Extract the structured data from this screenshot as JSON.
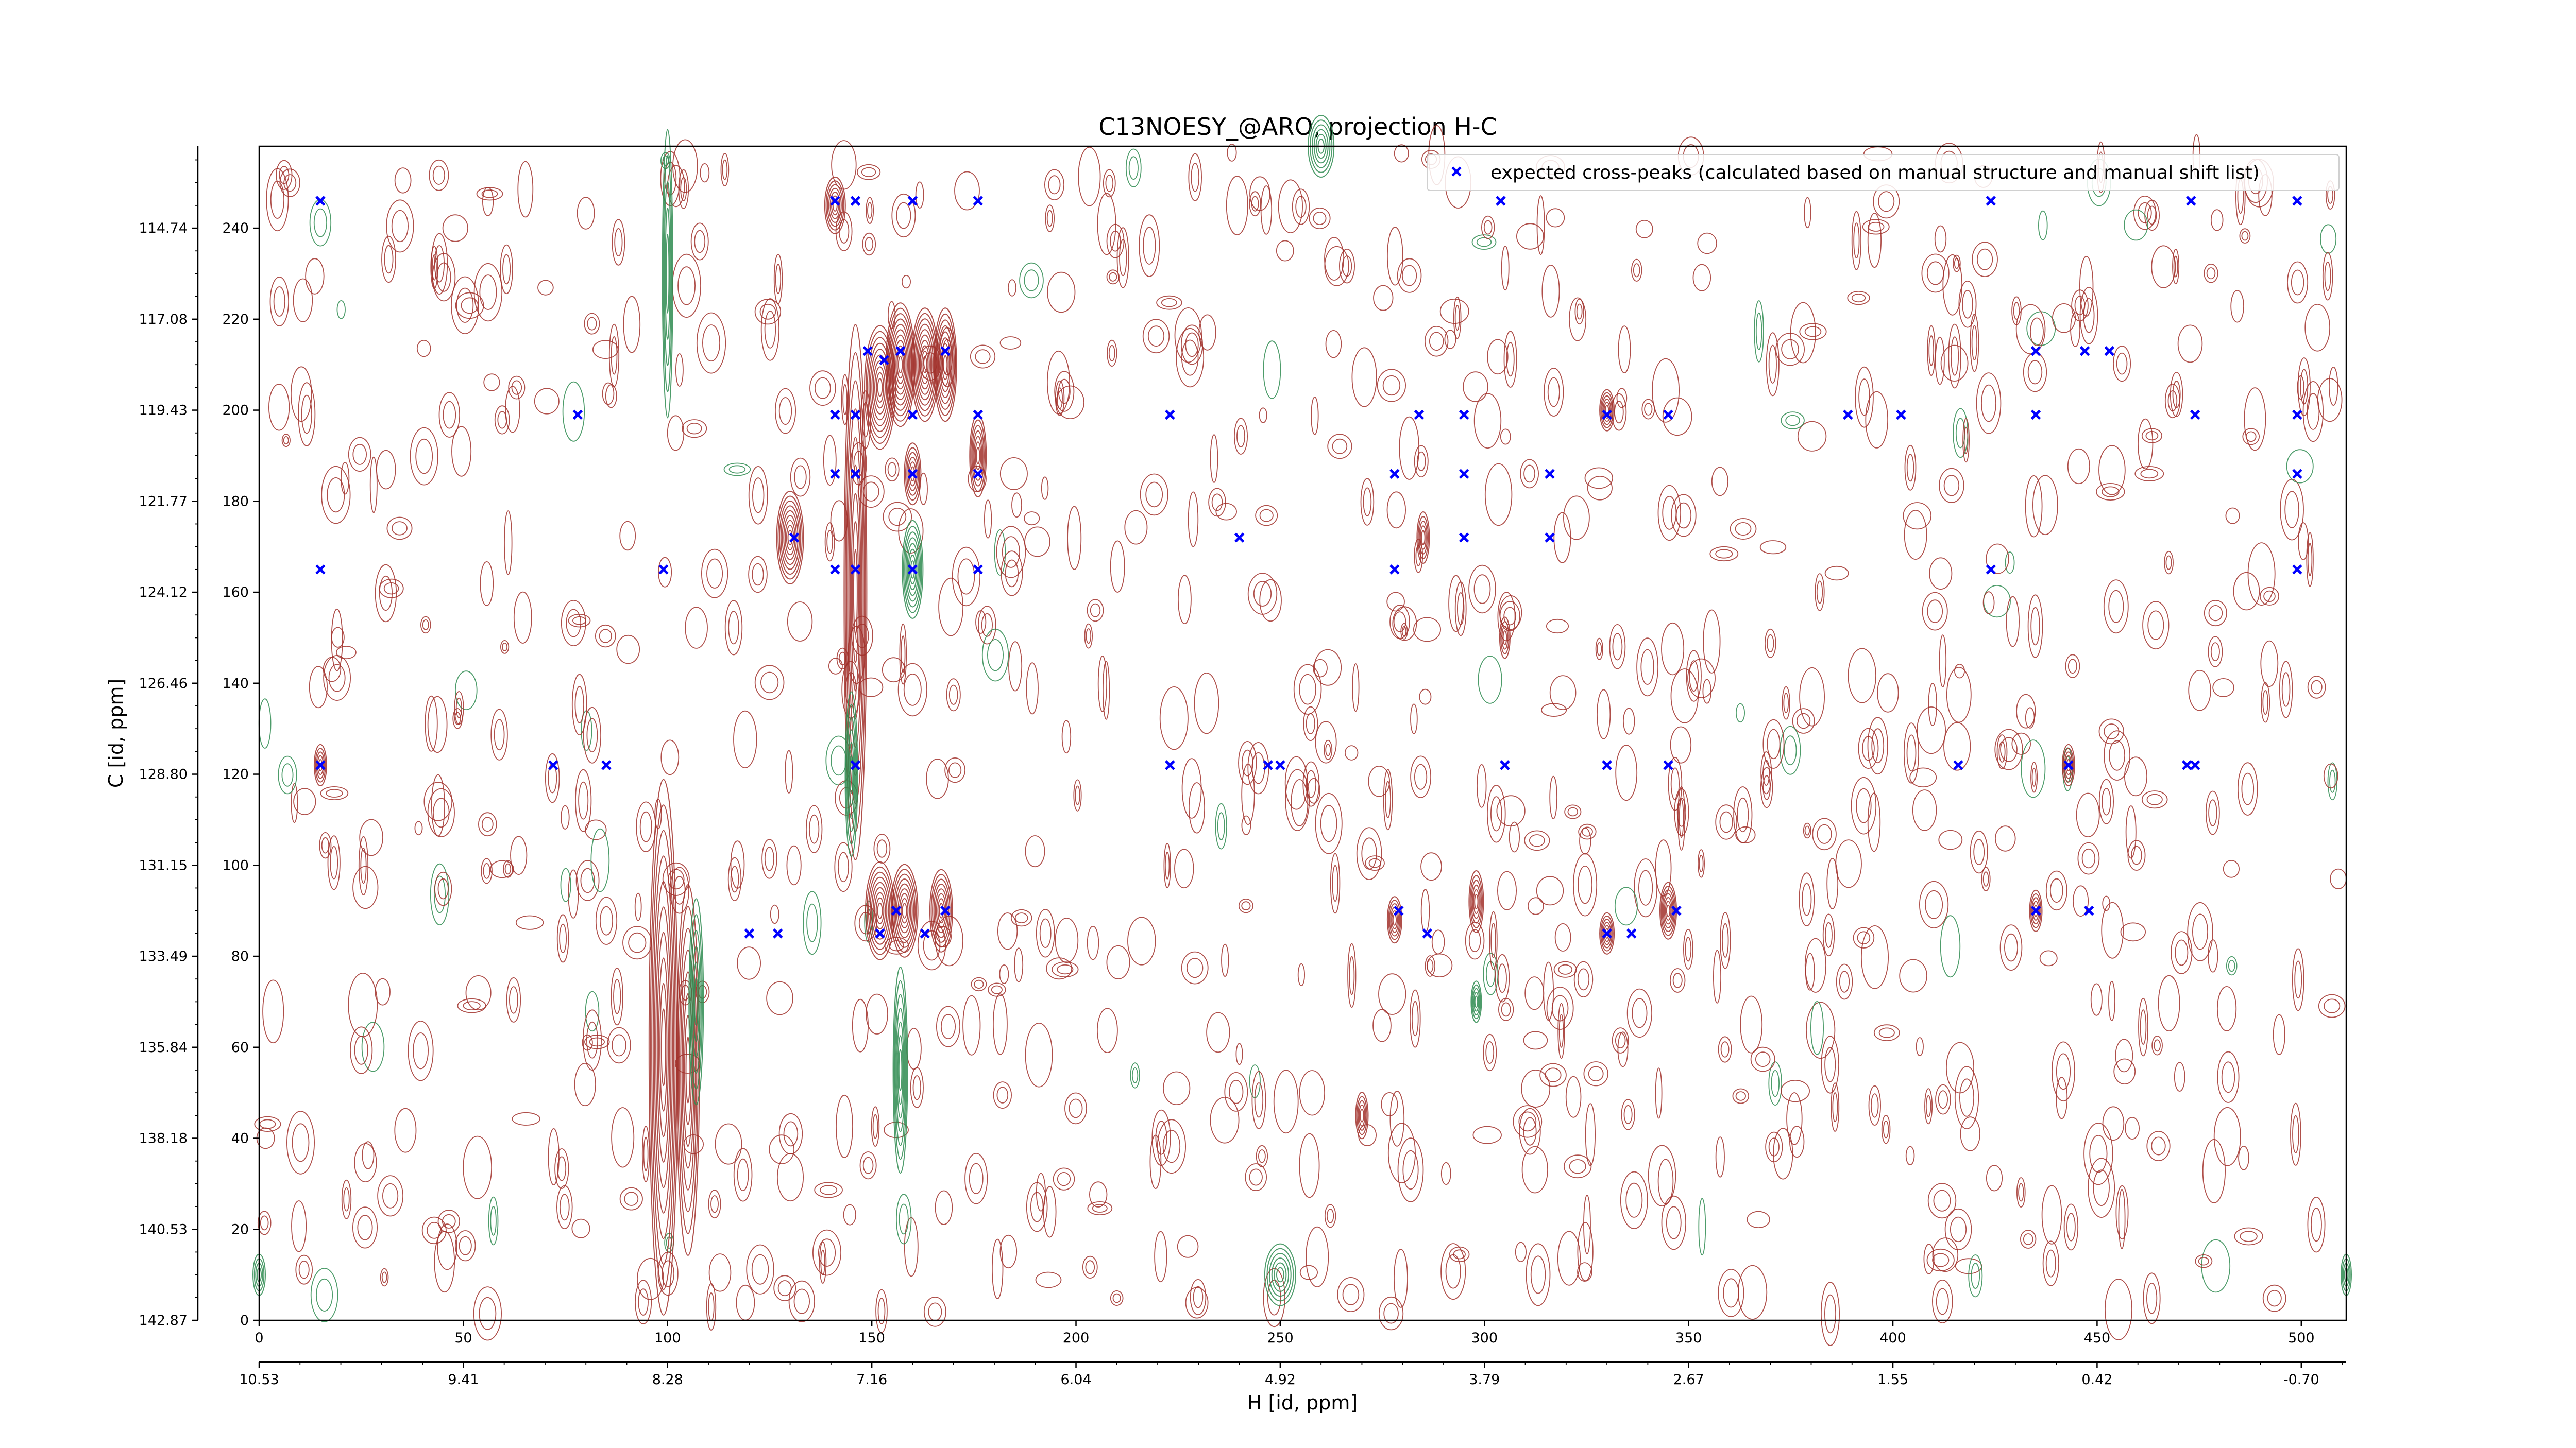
{
  "chart_data": {
    "type": "scatter",
    "title": "C13NOESY_@ARO, projection H-C",
    "xlabel": "H [id, ppm]",
    "ylabel": "C [id, ppm]",
    "x_index_ticks": [
      "0",
      "50",
      "100",
      "150",
      "200",
      "250",
      "300",
      "350",
      "400",
      "450",
      "500"
    ],
    "x_ppm_ticks": [
      "10.53",
      "9.41",
      "8.28",
      "7.16",
      "6.04",
      "4.92",
      "3.79",
      "2.67",
      "1.55",
      "0.42",
      "-0.70"
    ],
    "y_index_ticks": [
      "0",
      "20",
      "40",
      "60",
      "80",
      "100",
      "120",
      "140",
      "160",
      "180",
      "200",
      "220",
      "240"
    ],
    "y_ppm_ticks": [
      "142.87",
      "140.53",
      "138.18",
      "135.84",
      "133.49",
      "131.15",
      "128.80",
      "126.46",
      "124.12",
      "121.77",
      "119.43",
      "117.08",
      "114.74"
    ],
    "xlim": [
      0,
      511
    ],
    "ylim": [
      0,
      258
    ],
    "h_ppm_range": [
      10.53,
      -0.95
    ],
    "c_ppm_range": [
      142.87,
      113.9
    ],
    "grid": false,
    "legend_position": "top-right",
    "series": [
      {
        "name": "expected cross-peaks (calculated based on manual structure and manual shift list)",
        "color": "#0000ff",
        "marker": "x",
        "points": [
          [
            15,
            246
          ],
          [
            141,
            246
          ],
          [
            146,
            246
          ],
          [
            160,
            246
          ],
          [
            176,
            246
          ],
          [
            304,
            246
          ],
          [
            424,
            246
          ],
          [
            473,
            246
          ],
          [
            499,
            246
          ],
          [
            149,
            213
          ],
          [
            153,
            211
          ],
          [
            157,
            213
          ],
          [
            168,
            213
          ],
          [
            435,
            213
          ],
          [
            447,
            213
          ],
          [
            453,
            213
          ],
          [
            78,
            199
          ],
          [
            141,
            199
          ],
          [
            146,
            199
          ],
          [
            160,
            199
          ],
          [
            176,
            199
          ],
          [
            223,
            199
          ],
          [
            284,
            199
          ],
          [
            295,
            199
          ],
          [
            330,
            199
          ],
          [
            345,
            199
          ],
          [
            389,
            199
          ],
          [
            402,
            199
          ],
          [
            435,
            199
          ],
          [
            474,
            199
          ],
          [
            499,
            199
          ],
          [
            141,
            186
          ],
          [
            146,
            186
          ],
          [
            160,
            186
          ],
          [
            176,
            186
          ],
          [
            278,
            186
          ],
          [
            295,
            186
          ],
          [
            316,
            186
          ],
          [
            499,
            186
          ],
          [
            131,
            172
          ],
          [
            240,
            172
          ],
          [
            295,
            172
          ],
          [
            316,
            172
          ],
          [
            15,
            165
          ],
          [
            99,
            165
          ],
          [
            141,
            165
          ],
          [
            146,
            165
          ],
          [
            160,
            165
          ],
          [
            176,
            165
          ],
          [
            278,
            165
          ],
          [
            424,
            165
          ],
          [
            499,
            165
          ],
          [
            15,
            122
          ],
          [
            72,
            122
          ],
          [
            85,
            122
          ],
          [
            146,
            122
          ],
          [
            223,
            122
          ],
          [
            247,
            122
          ],
          [
            250,
            122
          ],
          [
            305,
            122
          ],
          [
            330,
            122
          ],
          [
            345,
            122
          ],
          [
            416,
            122
          ],
          [
            443,
            122
          ],
          [
            472,
            122
          ],
          [
            474,
            122
          ],
          [
            156,
            90
          ],
          [
            168,
            90
          ],
          [
            279,
            90
          ],
          [
            347,
            90
          ],
          [
            435,
            90
          ],
          [
            448,
            90
          ],
          [
            120,
            85
          ],
          [
            127,
            85
          ],
          [
            152,
            85
          ],
          [
            163,
            85
          ],
          [
            286,
            85
          ],
          [
            330,
            85
          ],
          [
            336,
            85
          ]
        ]
      }
    ]
  }
}
